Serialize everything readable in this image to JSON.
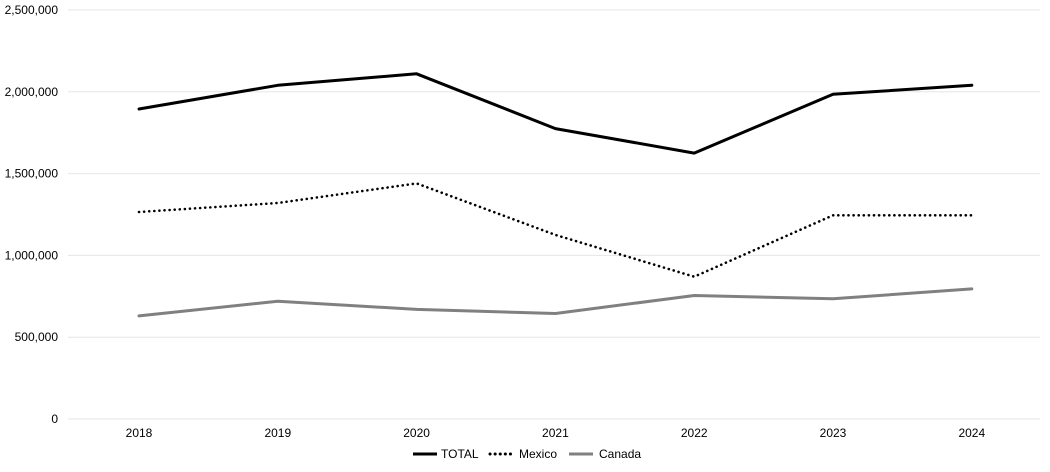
{
  "chart_data": {
    "type": "line",
    "categories": [
      "2018",
      "2019",
      "2020",
      "2021",
      "2022",
      "2023",
      "2024"
    ],
    "series": [
      {
        "name": "TOTAL",
        "values": [
          1895000,
          2040000,
          2110000,
          1775000,
          1625000,
          1985000,
          2040000
        ],
        "color": "#000000",
        "style": "solid"
      },
      {
        "name": "Mexico",
        "values": [
          1265000,
          1320000,
          1440000,
          1125000,
          870000,
          1245000,
          1245000
        ],
        "color": "#000000",
        "style": "dotted"
      },
      {
        "name": "Canada",
        "values": [
          630000,
          720000,
          670000,
          645000,
          755000,
          735000,
          795000
        ],
        "color": "#808080",
        "style": "solid"
      }
    ],
    "yticks": [
      "0",
      "500,000",
      "1,000,000",
      "1,500,000",
      "2,000,000",
      "2,500,000"
    ],
    "ylim": [
      0,
      2500000
    ],
    "grid": true,
    "legend": "bottom"
  }
}
